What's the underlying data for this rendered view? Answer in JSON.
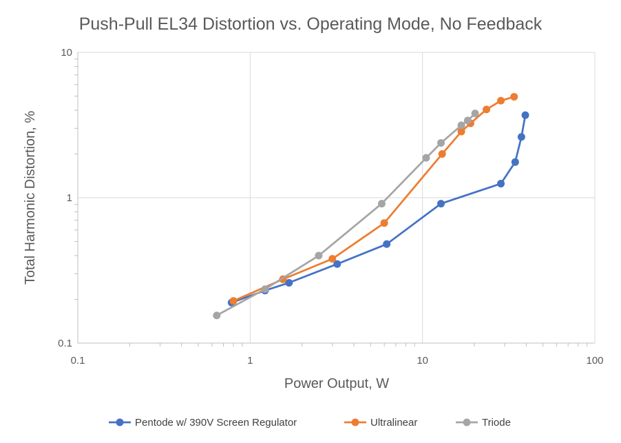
{
  "chart_data": {
    "type": "scatter",
    "title": "Push-Pull EL34 Distortion vs. Operating Mode, No Feedback",
    "xlabel": "Power Output, W",
    "ylabel": "Total Harmonic Distortion, %",
    "xscale": "log",
    "yscale": "log",
    "xlim": [
      0.1,
      100
    ],
    "ylim": [
      0.1,
      10
    ],
    "xticks": [
      "0.1",
      "1",
      "10",
      "100"
    ],
    "yticks": [
      "0.1",
      "1",
      "10"
    ],
    "grid": true,
    "legend": "bottom",
    "series": [
      {
        "name": "Pentode w/ 390V Screen Regulator",
        "color": "#4472C4",
        "x": [
          0.78,
          1.22,
          1.68,
          3.2,
          6.2,
          12.8,
          28.5,
          34.5,
          37.5,
          39.5
        ],
        "y": [
          0.19,
          0.23,
          0.26,
          0.35,
          0.48,
          0.91,
          1.25,
          1.76,
          2.62,
          3.7
        ]
      },
      {
        "name": "Ultralinear",
        "color": "#ED7D31",
        "x": [
          0.8,
          1.55,
          3.0,
          6.0,
          13.0,
          16.8,
          19.0,
          23.5,
          28.5,
          34.0
        ],
        "y": [
          0.195,
          0.275,
          0.38,
          0.67,
          2.0,
          2.85,
          3.25,
          4.05,
          4.65,
          4.95
        ]
      },
      {
        "name": "Triode",
        "color": "#A5A5A5",
        "x": [
          0.64,
          1.22,
          2.5,
          5.8,
          10.5,
          12.8,
          16.8,
          18.3,
          20.2
        ],
        "y": [
          0.155,
          0.235,
          0.4,
          0.91,
          1.88,
          2.38,
          3.15,
          3.4,
          3.8
        ]
      }
    ]
  }
}
